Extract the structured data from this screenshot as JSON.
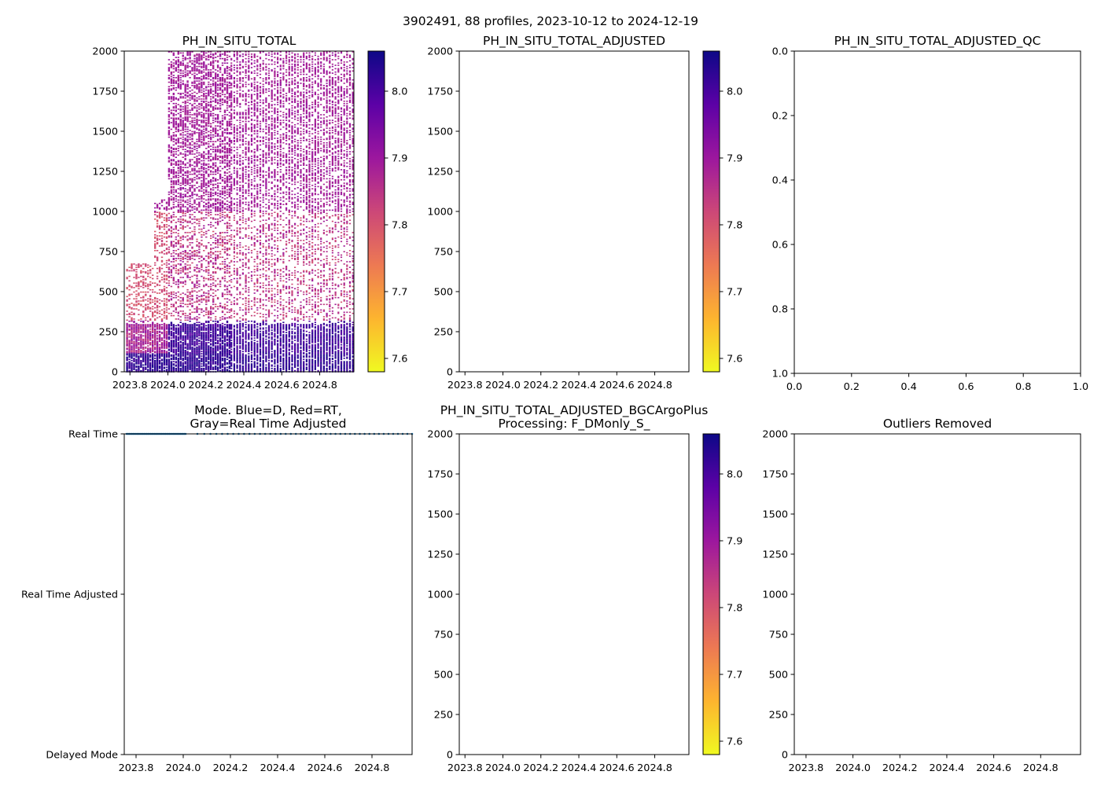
{
  "suptitle": "3902491, 88 profiles, 2023-10-12 to 2024-12-19",
  "colormap": {
    "name": "plasma_r",
    "stops": [
      "#f0f921",
      "#fdb42f",
      "#ed7953",
      "#cc4778",
      "#9c179e",
      "#5c01a6",
      "#0d0887"
    ]
  },
  "chart_data": [
    {
      "id": "ph-in-situ-total",
      "type": "heatmap",
      "title": "PH_IN_SITU_TOTAL",
      "xlabel": "",
      "ylabel": "",
      "xlim": [
        2023.77,
        2024.98
      ],
      "ylim": [
        2000,
        0
      ],
      "xticks": [
        2023.8,
        2024.0,
        2024.2,
        2024.4,
        2024.6,
        2024.8
      ],
      "xtick_labels": [
        "2023.8",
        "2024.0",
        "2024.2",
        "2024.4",
        "2024.6",
        "2024.8"
      ],
      "yticks": [
        0,
        250,
        500,
        750,
        1000,
        1250,
        1500,
        1750,
        2000
      ],
      "ytick_labels": [
        "0",
        "250",
        "500",
        "750",
        "1000",
        "1250",
        "1500",
        "1750",
        "2000"
      ],
      "profile_dates": {
        "start": 2023.78,
        "end": 2024.97,
        "count": 88
      },
      "colorbar": {
        "range": [
          7.58,
          8.06
        ],
        "ticks": [
          7.6,
          7.7,
          7.8,
          7.9,
          8.0
        ],
        "tick_labels": [
          "7.6",
          "7.7",
          "7.8",
          "7.9",
          "8.0"
        ]
      },
      "has_data": true
    },
    {
      "id": "ph-in-situ-total-adjusted",
      "type": "heatmap",
      "title": "PH_IN_SITU_TOTAL_ADJUSTED",
      "xlim": [
        2023.77,
        2024.98
      ],
      "ylim": [
        2000,
        0
      ],
      "xticks": [
        2023.8,
        2024.0,
        2024.2,
        2024.4,
        2024.6,
        2024.8
      ],
      "xtick_labels": [
        "2023.8",
        "2024.0",
        "2024.2",
        "2024.4",
        "2024.6",
        "2024.8"
      ],
      "yticks": [
        0,
        250,
        500,
        750,
        1000,
        1250,
        1500,
        1750,
        2000
      ],
      "ytick_labels": [
        "0",
        "250",
        "500",
        "750",
        "1000",
        "1250",
        "1500",
        "1750",
        "2000"
      ],
      "colorbar": {
        "range": [
          7.58,
          8.06
        ],
        "ticks": [
          7.6,
          7.7,
          7.8,
          7.9,
          8.0
        ],
        "tick_labels": [
          "7.6",
          "7.7",
          "7.8",
          "7.9",
          "8.0"
        ]
      },
      "has_data": false
    },
    {
      "id": "ph-in-situ-total-adjusted-qc",
      "type": "scatter",
      "title": "PH_IN_SITU_TOTAL_ADJUSTED_QC",
      "xlim": [
        0,
        1
      ],
      "ylim": [
        0,
        1
      ],
      "xticks": [
        0.0,
        0.2,
        0.4,
        0.6,
        0.8,
        1.0
      ],
      "xtick_labels": [
        "0.0",
        "0.2",
        "0.4",
        "0.6",
        "0.8",
        "1.0"
      ],
      "yticks": [
        0.0,
        0.2,
        0.4,
        0.6,
        0.8,
        1.0
      ],
      "ytick_labels": [
        "0.0",
        "0.2",
        "0.4",
        "0.6",
        "0.8",
        "1.0"
      ],
      "has_data": false
    },
    {
      "id": "mode",
      "type": "scatter",
      "title": "Mode. Blue=D, Red=RT,\nGray=Real Time Adjusted",
      "title_lines": [
        "Mode. Blue=D, Red=RT,",
        "Gray=Real Time Adjusted"
      ],
      "xlim": [
        2023.75,
        2024.97
      ],
      "ylim": [
        0,
        2
      ],
      "xticks": [
        2023.8,
        2024.0,
        2024.2,
        2024.4,
        2024.6,
        2024.8
      ],
      "xtick_labels": [
        "2023.8",
        "2024.0",
        "2024.2",
        "2024.4",
        "2024.6",
        "2024.8"
      ],
      "yticks": [
        2,
        1,
        0
      ],
      "ytick_labels": [
        "Delayed Mode",
        "Real Time Adjusted",
        "Real Time"
      ],
      "series": [
        {
          "name": "Real Time",
          "y": 0,
          "x_start": 2023.76,
          "x_dense_end": 2024.01,
          "x_end": 2024.97,
          "count": 88,
          "color": "#1f77b4"
        }
      ]
    },
    {
      "id": "ph-bgcargoplus",
      "type": "heatmap",
      "title_lines": [
        "PH_IN_SITU_TOTAL_ADJUSTED_BGCArgoPlus",
        "Processing: F_DMonly_S_"
      ],
      "xlim": [
        2023.77,
        2024.98
      ],
      "ylim": [
        2000,
        0
      ],
      "xticks": [
        2023.8,
        2024.0,
        2024.2,
        2024.4,
        2024.6,
        2024.8
      ],
      "xtick_labels": [
        "2023.8",
        "2024.0",
        "2024.2",
        "2024.4",
        "2024.6",
        "2024.8"
      ],
      "yticks": [
        0,
        250,
        500,
        750,
        1000,
        1250,
        1500,
        1750,
        2000
      ],
      "ytick_labels": [
        "0",
        "250",
        "500",
        "750",
        "1000",
        "1250",
        "1500",
        "1750",
        "2000"
      ],
      "colorbar": {
        "range": [
          7.58,
          8.06
        ],
        "ticks": [
          7.6,
          7.7,
          7.8,
          7.9,
          8.0
        ],
        "tick_labels": [
          "7.6",
          "7.7",
          "7.8",
          "7.9",
          "8.0"
        ]
      },
      "has_data": false
    },
    {
      "id": "outliers-removed",
      "type": "scatter",
      "title": "Outliers Removed",
      "xlim": [
        2023.75,
        2024.97
      ],
      "ylim": [
        2000,
        0
      ],
      "xticks": [
        2023.8,
        2024.0,
        2024.2,
        2024.4,
        2024.6,
        2024.8
      ],
      "xtick_labels": [
        "2023.8",
        "2024.0",
        "2024.2",
        "2024.4",
        "2024.6",
        "2024.8"
      ],
      "yticks": [
        0,
        250,
        500,
        750,
        1000,
        1250,
        1500,
        1750,
        2000
      ],
      "ytick_labels": [
        "0",
        "250",
        "500",
        "750",
        "1000",
        "1250",
        "1500",
        "1750",
        "2000"
      ],
      "has_data": false
    }
  ]
}
